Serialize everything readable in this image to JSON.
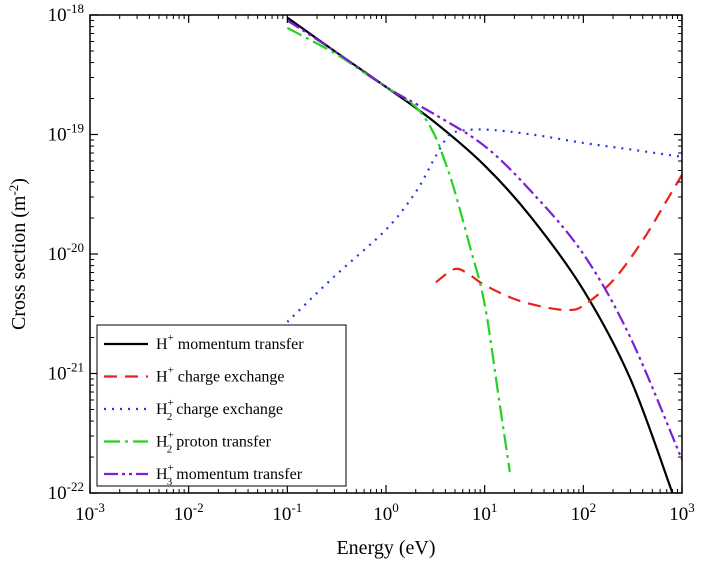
{
  "chart_data": {
    "type": "line",
    "title": "",
    "xlabel": "Energy (eV)",
    "ylabel": "Cross section (m-2)",
    "ylabel_parts": {
      "text": "Cross section (m",
      "sup": "-2",
      "close": ")"
    },
    "xscale": "log",
    "yscale": "log",
    "xlim": [
      0.001,
      1000
    ],
    "ylim": [
      1e-22,
      1e-18
    ],
    "grid": false,
    "legend_position": "bottom-left",
    "x_ticks": [
      {
        "base": "10",
        "exp": "-3",
        "value": 0.001
      },
      {
        "base": "10",
        "exp": "-2",
        "value": 0.01
      },
      {
        "base": "10",
        "exp": "-1",
        "value": 0.1
      },
      {
        "base": "10",
        "exp": "0",
        "value": 1
      },
      {
        "base": "10",
        "exp": "1",
        "value": 10
      },
      {
        "base": "10",
        "exp": "2",
        "value": 100
      },
      {
        "base": "10",
        "exp": "3",
        "value": 1000
      }
    ],
    "y_ticks": [
      {
        "base": "10",
        "exp": "-22",
        "value": 1e-22
      },
      {
        "base": "10",
        "exp": "-21",
        "value": 1e-21
      },
      {
        "base": "10",
        "exp": "-20",
        "value": 1e-20
      },
      {
        "base": "10",
        "exp": "-19",
        "value": 1e-19
      },
      {
        "base": "10",
        "exp": "-18",
        "value": 1e-18
      }
    ],
    "series": [
      {
        "name": "H+ momentum transfer",
        "label": {
          "main": "H",
          "sup": "+",
          "sub": "",
          "rest": " momentum transfer"
        },
        "color": "#000000",
        "dash": "",
        "x": [
          0.1,
          0.3,
          1,
          3,
          10,
          30,
          100,
          300,
          800
        ],
        "y": [
          9.5e-19,
          5e-19,
          2.5e-19,
          1.3e-19,
          5.5e-20,
          2e-20,
          5e-21,
          9e-22,
          1e-22
        ]
      },
      {
        "name": "H+ charge exchange",
        "label": {
          "main": "H",
          "sup": "+",
          "sub": "",
          "rest": " charge exchange"
        },
        "color": "#e8231f",
        "dash": "13,8",
        "x": [
          3.2,
          5,
          7,
          10,
          20,
          40,
          70,
          100,
          200,
          400,
          700,
          1000
        ],
        "y": [
          5.8e-21,
          7.5e-21,
          6.7e-21,
          5.5e-21,
          4.2e-21,
          3.6e-21,
          3.4e-21,
          3.7e-21,
          6e-21,
          1.3e-20,
          2.8e-20,
          4.6e-20
        ]
      },
      {
        "name": "H2+ charge exchange",
        "label": {
          "main": "H",
          "sup": "+",
          "sub": "2",
          "rest": " charge exchange"
        },
        "color": "#1f3be0",
        "dash": "2,6",
        "x": [
          0.1,
          0.3,
          1,
          2,
          3,
          4,
          5,
          10,
          30,
          100,
          300,
          1000
        ],
        "y": [
          2.7e-21,
          6.5e-21,
          1.6e-20,
          3.3e-20,
          6e-20,
          9e-20,
          1.05e-19,
          1.1e-19,
          1e-19,
          8.5e-20,
          7.5e-20,
          6.5e-20
        ]
      },
      {
        "name": "H2+ proton transfer",
        "label": {
          "main": "H",
          "sup": "+",
          "sub": "2",
          "rest": " proton transfer"
        },
        "color": "#22d31f",
        "dash": "16,5,3,5",
        "x": [
          0.1,
          0.3,
          0.6,
          1,
          2,
          3,
          4,
          5,
          7,
          10,
          14,
          18
        ],
        "y": [
          7.8e-19,
          4.8e-19,
          3.3e-19,
          2.5e-19,
          1.7e-19,
          1.05e-19,
          5.8e-20,
          3.3e-20,
          1.2e-20,
          3.8e-21,
          6e-22,
          1.5e-22
        ]
      },
      {
        "name": "H3+ momentum transfer",
        "label": {
          "main": "H",
          "sup": "+",
          "sub": "3",
          "rest": " momentum transfer"
        },
        "color": "#7a1fd6",
        "dash": "14,4,3,4,3,4",
        "x": [
          0.1,
          0.3,
          1,
          3,
          10,
          30,
          100,
          300,
          1000
        ],
        "y": [
          9e-19,
          5e-19,
          2.5e-19,
          1.5e-19,
          8e-20,
          3.3e-20,
          1e-20,
          2e-21,
          1.9e-22
        ]
      }
    ]
  }
}
